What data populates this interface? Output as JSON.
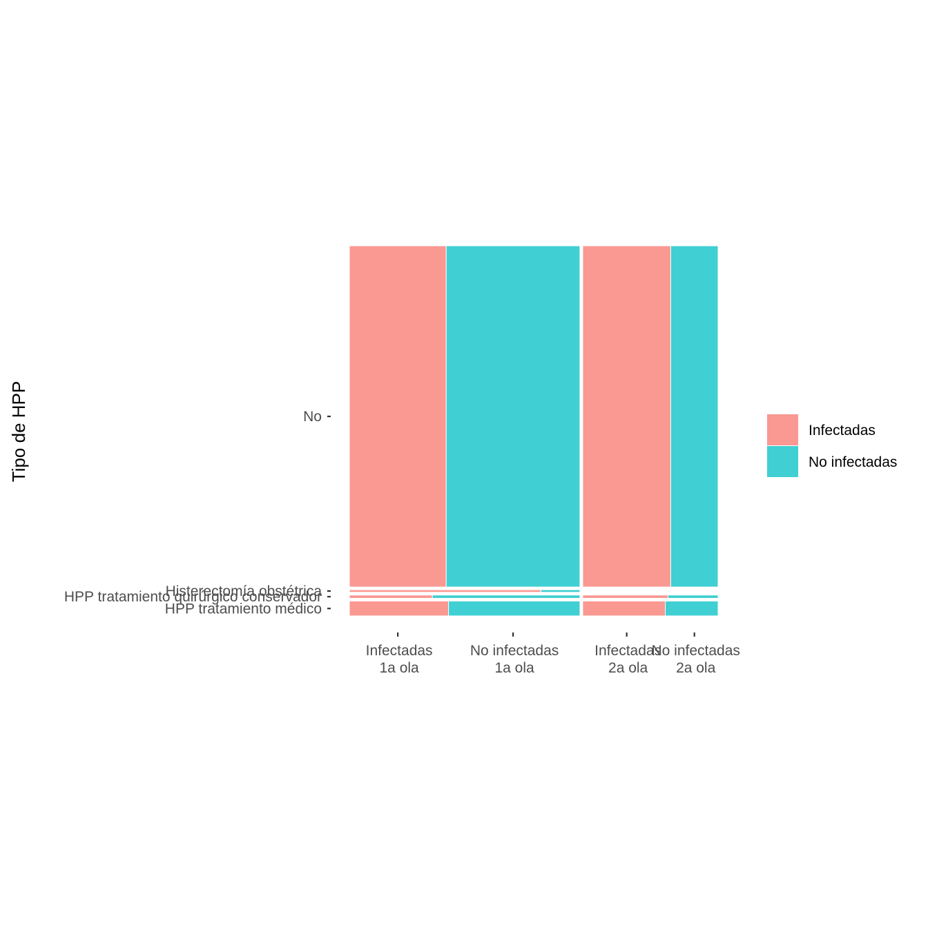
{
  "chart_data": {
    "type": "mosaic",
    "title": "",
    "xlabel": "",
    "ylabel": "Tipo de HPP",
    "x_groups": [
      {
        "name": "1a ola",
        "categories": [
          "Infectadas",
          "No infectadas"
        ]
      },
      {
        "name": "2a ola",
        "categories": [
          "Infectadas",
          "No infectadas"
        ]
      }
    ],
    "x_tick_labels": [
      [
        "Infectadas",
        "1a ola"
      ],
      [
        "No infectadas",
        "1a ola"
      ],
      [
        "Infectadas",
        "2a ola"
      ],
      [
        "No infectadas",
        "2a ola"
      ]
    ],
    "y_categories": [
      "HPP tratamiento médico",
      "HPP tratamiento quirúrgico conservador",
      "Histerectomía obstétrica",
      "No"
    ],
    "y_group_shares": [
      0.041,
      0.009,
      0.007,
      0.943
    ],
    "x_group_shares": [
      0.63,
      0.37
    ],
    "fill_shares": {
      "1a ola": {
        "HPP tratamiento médico": {
          "Infectadas": 0.43,
          "No infectadas": 0.57
        },
        "HPP tratamiento quirúrgico conservador": {
          "Infectadas": 0.36,
          "No infectadas": 0.64
        },
        "Histerectomía obstétrica": {
          "Infectadas": 0.83,
          "No infectadas": 0.17
        },
        "No": {
          "Infectadas": 0.42,
          "No infectadas": 0.58
        }
      },
      "2a ola": {
        "HPP tratamiento médico": {
          "Infectadas": 0.61,
          "No infectadas": 0.39
        },
        "HPP tratamiento quirúrgico conservador": {
          "Infectadas": 0.63,
          "No infectadas": 0.37
        },
        "No": {
          "Infectadas": 0.65,
          "No infectadas": 0.35
        }
      }
    },
    "legend": {
      "position": "right",
      "entries": [
        {
          "label": "Infectadas",
          "color": "#F8766D"
        },
        {
          "label": "No infectadas",
          "color": "#00BFC4"
        }
      ]
    },
    "colors": {
      "Infectadas": "#F8766D",
      "No infectadas": "#00BFC4",
      "tiles_alpha": 0.75
    },
    "grid": false
  }
}
